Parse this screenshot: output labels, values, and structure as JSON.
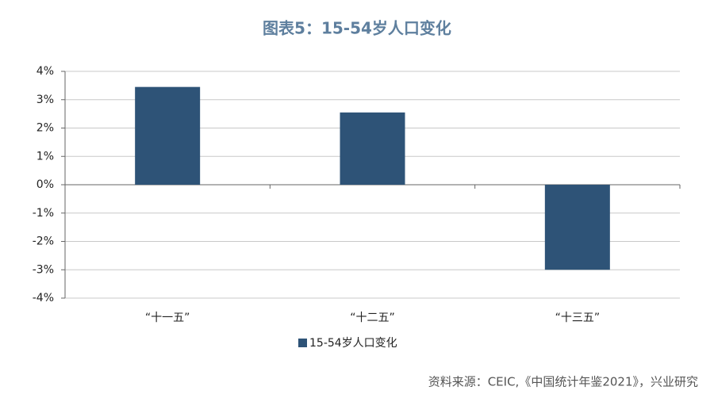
{
  "chart_data": {
    "type": "bar",
    "title": "图表5：15-54岁人口变化",
    "categories": [
      "“十一五”",
      "“十二五”",
      "“十三五”"
    ],
    "series": [
      {
        "name": "15-54岁人口变化",
        "color": "#2e5377",
        "values": [
          3.45,
          2.55,
          -3.0
        ]
      }
    ],
    "ylim": [
      -4,
      4
    ],
    "yticks": [
      {
        "value": -4,
        "label": "-4%"
      },
      {
        "value": -3,
        "label": "-3%"
      },
      {
        "value": -2,
        "label": "-2%"
      },
      {
        "value": -1,
        "label": "-1%"
      },
      {
        "value": 0,
        "label": "0%"
      },
      {
        "value": 1,
        "label": "1%"
      },
      {
        "value": 2,
        "label": "2%"
      },
      {
        "value": 3,
        "label": "3%"
      },
      {
        "value": 4,
        "label": "4%"
      }
    ],
    "grid": true,
    "legend": "bottom",
    "source": "资料来源：CEIC,《中国统计年鉴2021》，兴业研究"
  }
}
